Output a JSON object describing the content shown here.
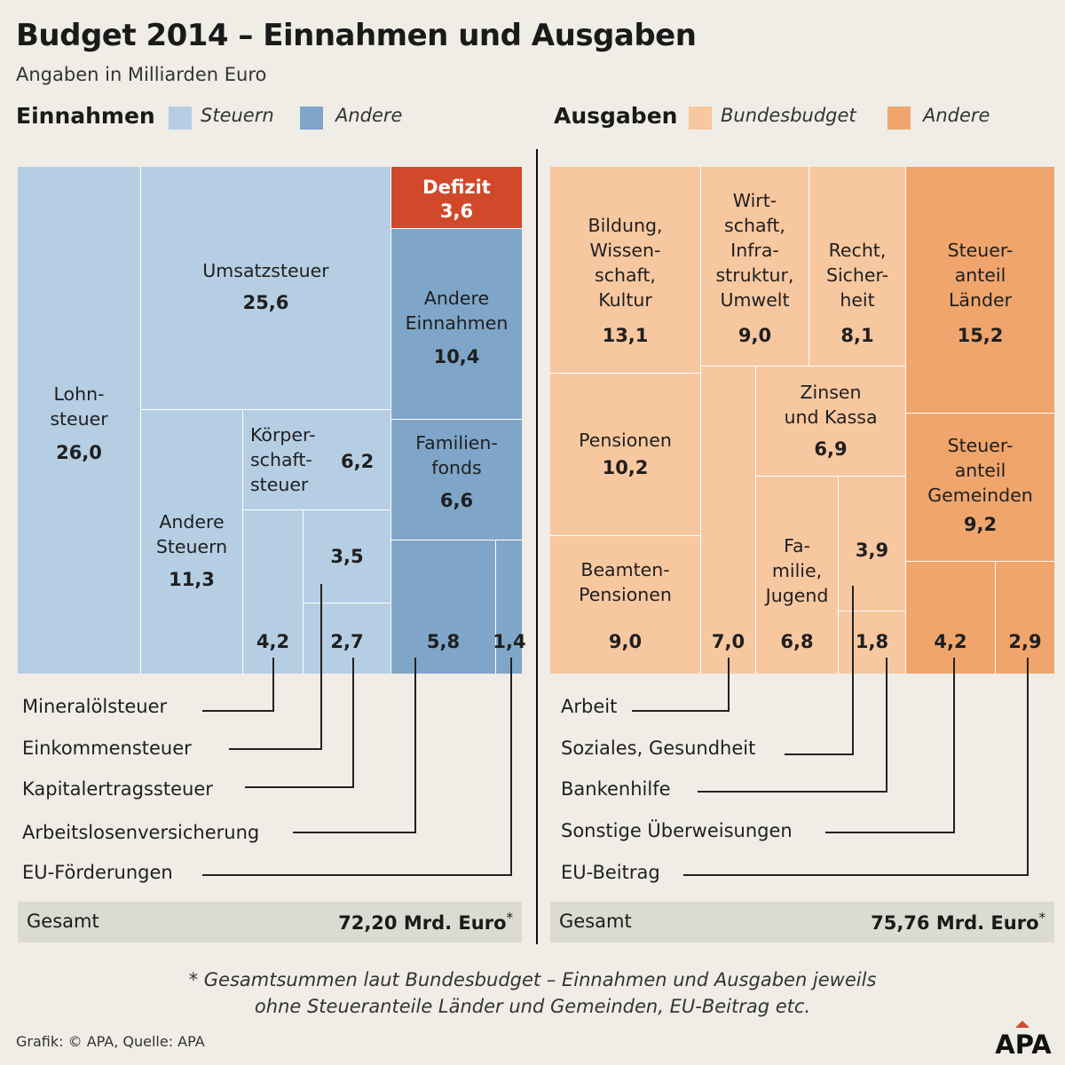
{
  "title": "Budget 2014 – Einnahmen und Ausgaben",
  "subtitle": "Angaben in Milliarden Euro",
  "income": {
    "heading": "Einnahmen",
    "legend": [
      {
        "label": "Steuern",
        "color": "#b5cee3"
      },
      {
        "label": "Andere",
        "color": "#7fa6c8"
      }
    ]
  },
  "expenses": {
    "heading": "Ausgaben",
    "legend": [
      {
        "label": "Bundesbudget",
        "color": "#f7c7a0"
      },
      {
        "label": "Andere",
        "color": "#efa56c"
      }
    ]
  },
  "chart_data": [
    {
      "type": "treemap",
      "title": "Einnahmen",
      "unit": "Mrd. Euro",
      "items": [
        {
          "label": "Lohnsteuer",
          "value": 26.0,
          "value_label": "26,0",
          "group": "Steuern"
        },
        {
          "label": "Umsatzsteuer",
          "value": 25.6,
          "value_label": "25,6",
          "group": "Steuern"
        },
        {
          "label": "Andere Steuern",
          "value": 11.3,
          "value_label": "11,3",
          "group": "Steuern"
        },
        {
          "label": "Körperschaftsteuer",
          "value": 6.2,
          "value_label": "6,2",
          "group": "Steuern"
        },
        {
          "label": "Mineralölsteuer",
          "value": 4.2,
          "value_label": "4,2",
          "group": "Steuern"
        },
        {
          "label": "Einkommensteuer",
          "value": 3.5,
          "value_label": "3,5",
          "group": "Steuern"
        },
        {
          "label": "Kapitalertragssteuer",
          "value": 2.7,
          "value_label": "2,7",
          "group": "Steuern"
        },
        {
          "label": "Defizit",
          "value": 3.6,
          "value_label": "3,6",
          "group": "Defizit"
        },
        {
          "label": "Andere Einnahmen",
          "value": 10.4,
          "value_label": "10,4",
          "group": "Andere"
        },
        {
          "label": "Familienfonds",
          "value": 6.6,
          "value_label": "6,6",
          "group": "Andere"
        },
        {
          "label": "Arbeitslosenversicherung",
          "value": 5.8,
          "value_label": "5,8",
          "group": "Andere"
        },
        {
          "label": "EU-Förderungen",
          "value": 1.4,
          "value_label": "1,4",
          "group": "Andere"
        }
      ],
      "total_label": "Gesamt",
      "total_value": "72,20 Mrd. Euro",
      "total_mark": "*"
    },
    {
      "type": "treemap",
      "title": "Ausgaben",
      "unit": "Mrd. Euro",
      "items": [
        {
          "label": "Bildung, Wissenschaft, Kultur",
          "value": 13.1,
          "value_label": "13,1",
          "group": "Bundesbudget"
        },
        {
          "label": "Wirtschaft, Infrastruktur, Umwelt",
          "value": 9.0,
          "value_label": "9,0",
          "group": "Bundesbudget"
        },
        {
          "label": "Recht, Sicherheit",
          "value": 8.1,
          "value_label": "8,1",
          "group": "Bundesbudget"
        },
        {
          "label": "Pensionen",
          "value": 10.2,
          "value_label": "10,2",
          "group": "Bundesbudget"
        },
        {
          "label": "Zinsen und Kassa",
          "value": 6.9,
          "value_label": "6,9",
          "group": "Bundesbudget"
        },
        {
          "label": "Beamten-Pensionen",
          "value": 9.0,
          "value_label": "9,0",
          "group": "Bundesbudget"
        },
        {
          "label": "Arbeit",
          "value": 7.0,
          "value_label": "7,0",
          "group": "Bundesbudget"
        },
        {
          "label": "Familie, Jugend",
          "value": 6.8,
          "value_label": "6,8",
          "group": "Bundesbudget"
        },
        {
          "label": "Soziales, Gesundheit",
          "value": 3.9,
          "value_label": "3,9",
          "group": "Bundesbudget"
        },
        {
          "label": "Bankenhilfe",
          "value": 1.8,
          "value_label": "1,8",
          "group": "Bundesbudget"
        },
        {
          "label": "Steueranteil Länder",
          "value": 15.2,
          "value_label": "15,2",
          "group": "Andere"
        },
        {
          "label": "Steueranteil Gemeinden",
          "value": 9.2,
          "value_label": "9,2",
          "group": "Andere"
        },
        {
          "label": "Sonstige Überweisungen",
          "value": 4.2,
          "value_label": "4,2",
          "group": "Andere"
        },
        {
          "label": "EU-Beitrag",
          "value": 2.9,
          "value_label": "2,9",
          "group": "Andere"
        }
      ],
      "total_label": "Gesamt",
      "total_value": "75,76 Mrd. Euro",
      "total_mark": "*"
    }
  ],
  "tile_labels": {
    "lohn": [
      "Lohn-",
      "steuer"
    ],
    "umsatz": [
      "Umsatzsteuer"
    ],
    "anderesteuern": [
      "Andere",
      "Steuern"
    ],
    "koerper": [
      "Körper-",
      "schaft-",
      "steuer"
    ],
    "defizit": [
      "Defizit"
    ],
    "andereein": [
      "Andere",
      "Einnahmen"
    ],
    "familienfonds": [
      "Familien-",
      "fonds"
    ],
    "bildung": [
      "Bildung,",
      "Wissen-",
      "schaft,",
      "Kultur"
    ],
    "wirtschaft": [
      "Wirt-",
      "schaft,",
      "Infra-",
      "struktur,",
      "Umwelt"
    ],
    "recht": [
      "Recht,",
      "Sicher-",
      "heit"
    ],
    "pensionen": [
      "Pensionen"
    ],
    "zinsen": [
      "Zinsen",
      "und Kassa"
    ],
    "beamten": [
      "Beamten-",
      "Pensionen"
    ],
    "familie": [
      "Fa-",
      "milie,",
      "Jugend"
    ],
    "laender": [
      "Steuer-",
      "anteil",
      "Länder"
    ],
    "gemeinden": [
      "Steuer-",
      "anteil",
      "Gemeinden"
    ]
  },
  "footnote": [
    "* Gesamtsummen laut Bundesbudget – Einnahmen und Ausgaben jeweils",
    "ohne Steueranteile Länder und Gemeinden, EU-Beitrag etc."
  ],
  "credit": "Grafik: © APA, Quelle: APA",
  "logo": "APA",
  "colors": {
    "steuern": "#b5cee3",
    "andere_ein": "#7fa6c8",
    "defizit": "#d2482a",
    "bundesbudget": "#f7c7a0",
    "andere_aus": "#efa56c",
    "total_bg": "#dcdbd2",
    "background": "#efede6"
  }
}
